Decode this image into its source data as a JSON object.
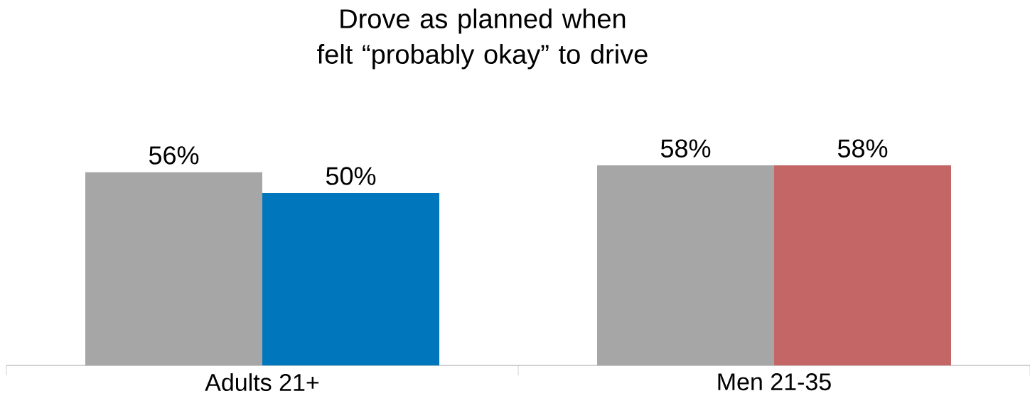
{
  "chart_data": {
    "type": "bar",
    "title": "Drove as planned when felt “probably okay” to drive",
    "categories": [
      "Adults 21+",
      "Men 21-35"
    ],
    "series": [
      {
        "color": "#a6a6a6",
        "values": [
          56,
          58
        ],
        "value_labels": [
          "56%",
          "58%"
        ]
      },
      {
        "colors": [
          "#0077bd",
          "#c46666"
        ],
        "values": [
          50,
          58
        ],
        "value_labels": [
          "50%",
          "58%"
        ]
      }
    ]
  }
}
